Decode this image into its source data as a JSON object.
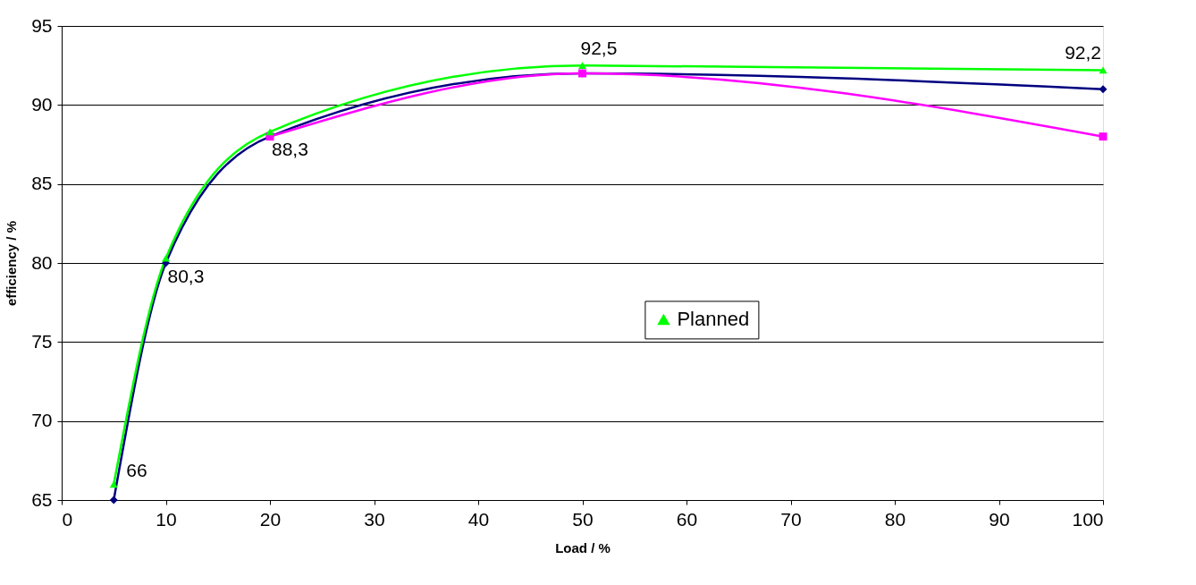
{
  "chart_data": {
    "type": "line",
    "xlabel": "Load / %",
    "ylabel": "efficiency / %",
    "x": [
      5,
      10,
      20,
      50,
      100
    ],
    "series": [
      {
        "color": "#000080",
        "marker": "diamond",
        "values": [
          65,
          80,
          88,
          92,
          91
        ]
      },
      {
        "color": "#ff00ff",
        "marker": "square",
        "x": [
          20,
          50,
          100
        ],
        "values": [
          88,
          92,
          88
        ]
      },
      {
        "name": "Planned",
        "color": "#00ff00",
        "marker": "triangle",
        "values": [
          66,
          80.3,
          88.3,
          92.5,
          92.2
        ],
        "value_labels": [
          "66",
          "80,3",
          "88,3",
          "92,5",
          "92,2"
        ]
      }
    ],
    "xlim": [
      0,
      100
    ],
    "xticks": [
      0,
      10,
      20,
      30,
      40,
      50,
      60,
      70,
      80,
      90,
      100
    ],
    "ylim": [
      65,
      95
    ],
    "yticks": [
      65,
      70,
      75,
      80,
      85,
      90,
      95
    ],
    "grid": "y",
    "legend": "right",
    "line_style": "solid"
  }
}
